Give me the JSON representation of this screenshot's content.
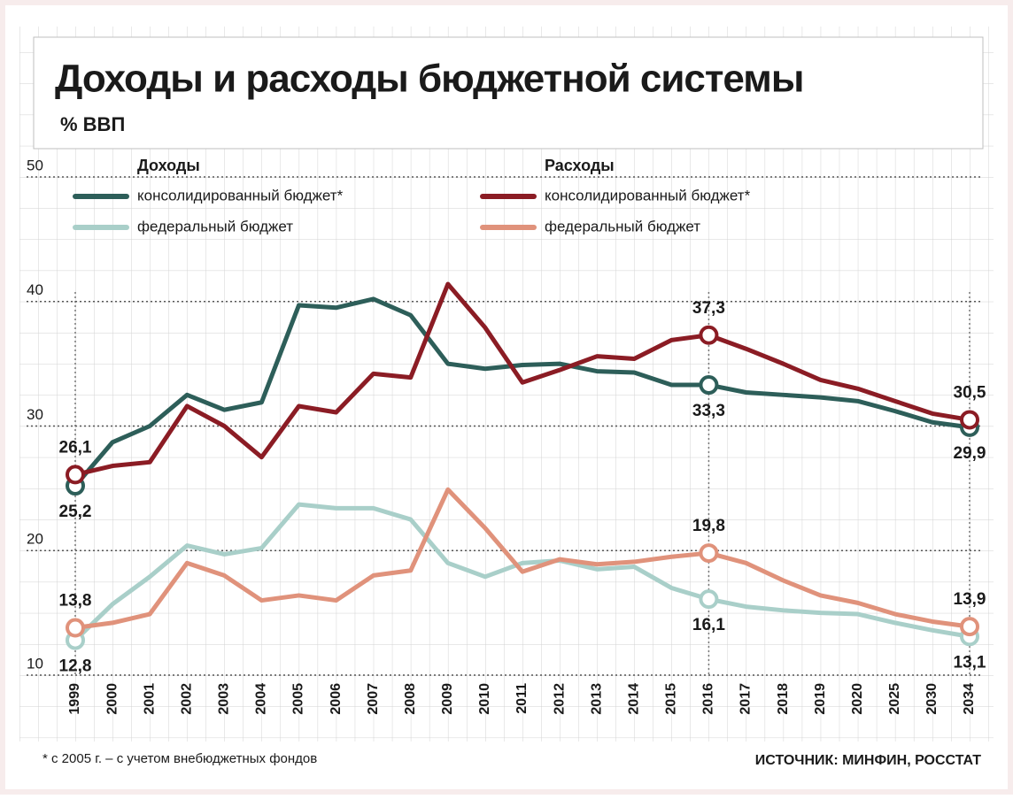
{
  "chart_data": {
    "type": "line",
    "title": "Доходы и расходы бюджетной системы",
    "subtitle": "% ВВП",
    "footnote": "* с 2005 г. – с учетом внебюджетных фондов",
    "source": "ИСТОЧНИК: МИНФИН, РОССТАТ",
    "legend_groups": [
      "Доходы",
      "Расходы"
    ],
    "categories": [
      "1999",
      "2000",
      "2001",
      "2002",
      "2003",
      "2004",
      "2005",
      "2006",
      "2007",
      "2008",
      "2009",
      "2010",
      "2011",
      "2012",
      "2013",
      "2014",
      "2015",
      "2016",
      "2017",
      "2018",
      "2019",
      "2020",
      "2025",
      "2030",
      "2034"
    ],
    "ylim": [
      10,
      50
    ],
    "yticks": [
      10,
      20,
      30,
      40,
      50
    ],
    "grid": true,
    "series": [
      {
        "name": "консолидированный бюджет*",
        "color": "#2d5e59",
        "values": [
          25.2,
          28.7,
          30.0,
          32.5,
          31.3,
          31.9,
          39.7,
          39.5,
          40.2,
          38.9,
          35.0,
          34.6,
          34.9,
          35.0,
          34.4,
          34.3,
          33.3,
          33.3,
          32.7,
          32.5,
          32.3,
          32.0,
          31.2,
          30.3,
          29.9
        ],
        "value_labels": [
          "25,2",
          null,
          null,
          null,
          null,
          null,
          null,
          null,
          null,
          null,
          null,
          null,
          null,
          null,
          null,
          null,
          null,
          "33,3",
          null,
          null,
          null,
          null,
          null,
          null,
          "29,9"
        ]
      },
      {
        "name": "федеральный бюджет",
        "color": "#a9cfc9",
        "values": [
          12.8,
          15.7,
          17.9,
          20.4,
          19.7,
          20.2,
          23.7,
          23.4,
          23.4,
          22.5,
          19.0,
          17.9,
          19.0,
          19.2,
          18.5,
          18.7,
          17.0,
          16.1,
          15.5,
          15.2,
          15.0,
          14.9,
          14.2,
          13.6,
          13.1
        ],
        "value_labels": [
          "12,8",
          null,
          null,
          null,
          null,
          null,
          null,
          null,
          null,
          null,
          null,
          null,
          null,
          null,
          null,
          null,
          null,
          "16,1",
          null,
          null,
          null,
          null,
          null,
          null,
          "13,1"
        ]
      },
      {
        "name": "консолидированный бюджет*",
        "color": "#8b1c24",
        "values": [
          26.1,
          26.8,
          27.1,
          31.6,
          30.0,
          27.5,
          31.6,
          31.1,
          34.2,
          33.9,
          41.4,
          37.9,
          33.5,
          34.5,
          35.6,
          35.4,
          36.9,
          37.3,
          36.2,
          35.0,
          33.7,
          33.0,
          32.0,
          31.0,
          30.5
        ],
        "value_labels": [
          "26,1",
          null,
          null,
          null,
          null,
          null,
          null,
          null,
          null,
          null,
          null,
          null,
          null,
          null,
          null,
          null,
          null,
          "37,3",
          null,
          null,
          null,
          null,
          null,
          null,
          "30,5"
        ]
      },
      {
        "name": "федеральный бюджет",
        "color": "#e0927b",
        "values": [
          13.8,
          14.2,
          14.9,
          19.0,
          18.0,
          16.0,
          16.4,
          16.0,
          18.0,
          18.4,
          24.9,
          21.8,
          18.3,
          19.3,
          18.9,
          19.1,
          19.5,
          19.8,
          19.0,
          17.6,
          16.4,
          15.8,
          14.9,
          14.3,
          13.9
        ],
        "value_labels": [
          "13,8",
          null,
          null,
          null,
          null,
          null,
          null,
          null,
          null,
          null,
          null,
          null,
          null,
          null,
          null,
          null,
          null,
          "19,8",
          null,
          null,
          null,
          null,
          null,
          null,
          "13,9"
        ]
      }
    ]
  }
}
